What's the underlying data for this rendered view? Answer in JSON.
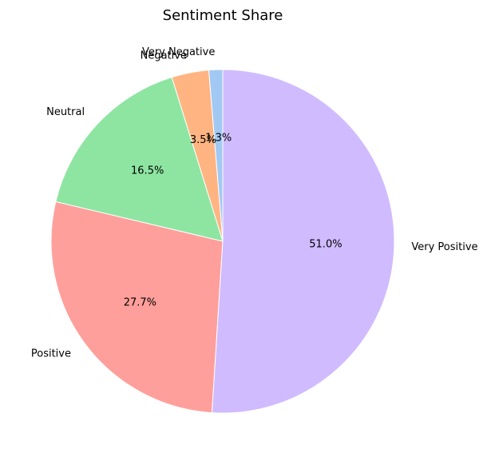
{
  "chart_data": {
    "type": "pie",
    "title": "Sentiment Share",
    "categories": [
      "Very Negative",
      "Negative",
      "Neutral",
      "Positive",
      "Very Positive"
    ],
    "values": [
      1.3,
      3.5,
      16.5,
      27.7,
      51.0
    ],
    "percent_labels": [
      "1.3%",
      "3.5%",
      "16.5%",
      "27.7%",
      "51.0%"
    ],
    "colors": [
      "#a1c9f4",
      "#ffb482",
      "#8de5a1",
      "#ff9f9b",
      "#d0bbff"
    ],
    "start_angle_deg": 90,
    "direction": "counterclockwise"
  }
}
